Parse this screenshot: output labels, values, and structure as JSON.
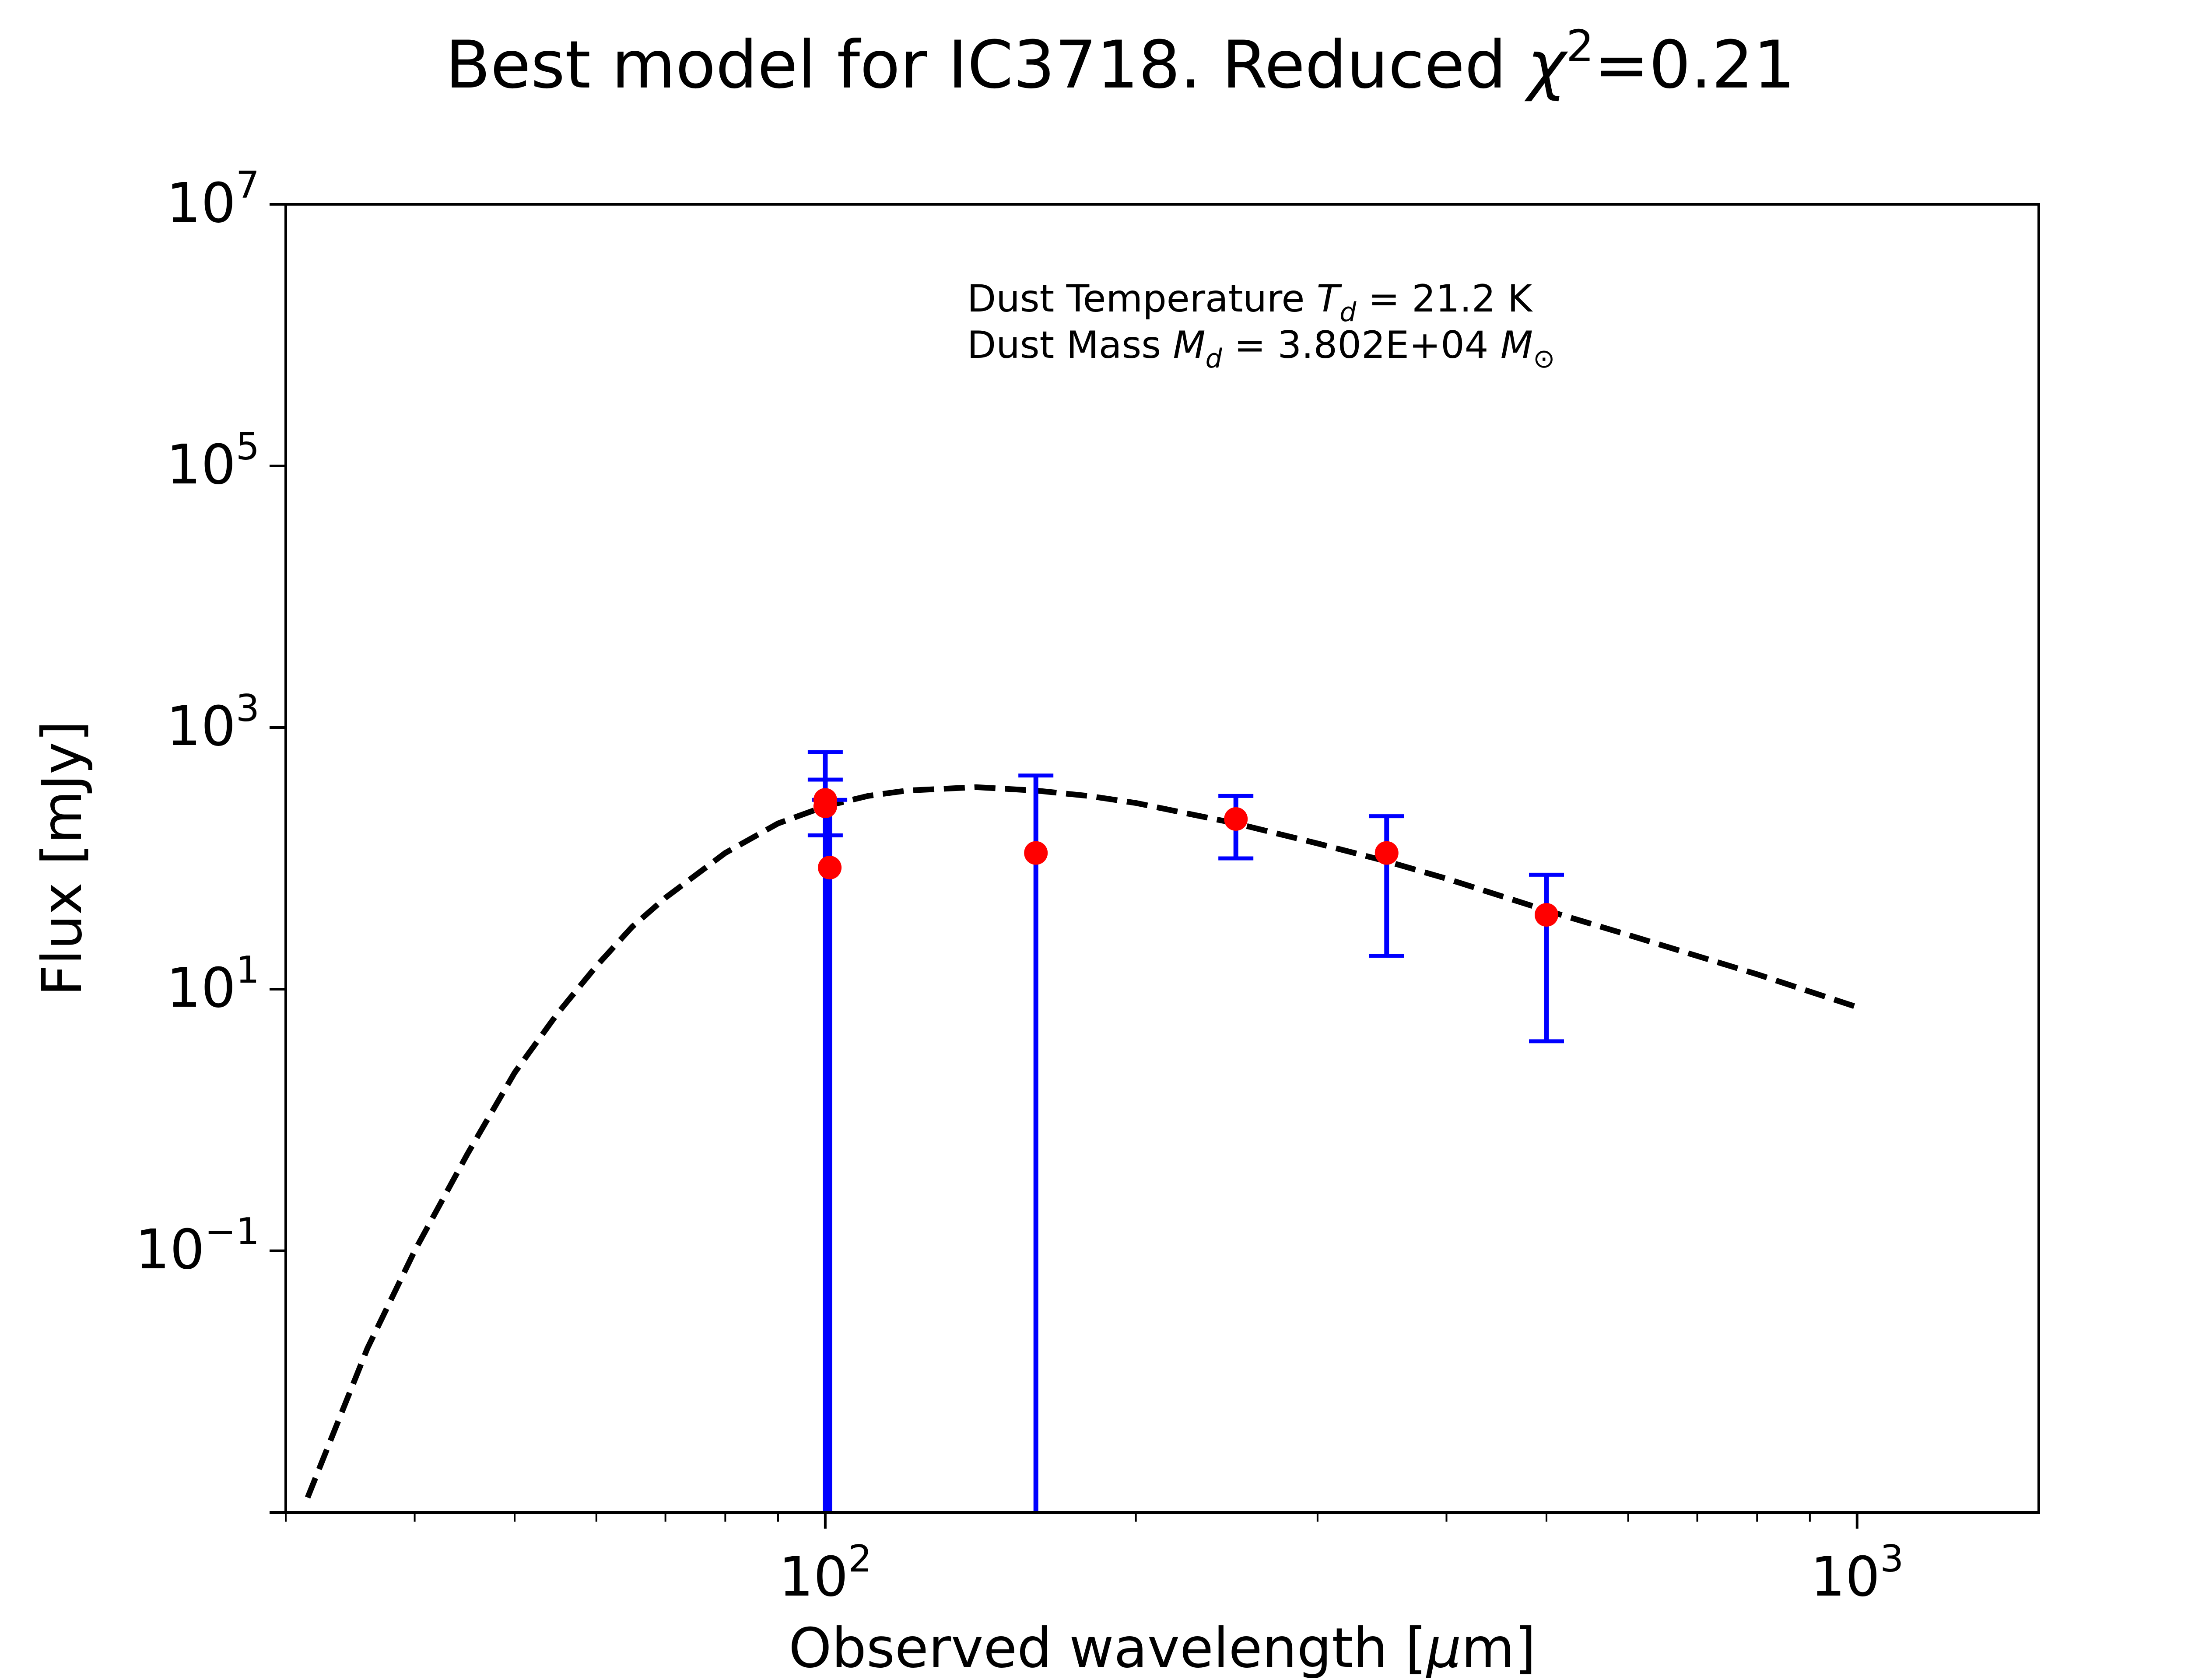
{
  "chart_data": {
    "type": "scatter",
    "title": "Best model for IC3718. Reduced χ²=0.21",
    "title_parts": {
      "main": "Best model for IC3718. Reduced ",
      "chi": "χ",
      "sup": "2",
      "rest": "=0.21"
    },
    "xlabel": "Observed wavelength [μm]",
    "xlabel_parts": {
      "pre": "Observed wavelength [",
      "mu": "μ",
      "post": "m]"
    },
    "ylabel": "Flux [mJy]",
    "xscale": "log",
    "yscale": "log",
    "xlim": [
      30,
      1500
    ],
    "ylim": [
      0.001,
      10000000
    ],
    "xticks": [
      {
        "value": 100,
        "base": "10",
        "exp": "2"
      },
      {
        "value": 1000,
        "base": "10",
        "exp": "3"
      }
    ],
    "yticks": [
      {
        "value": 0.1,
        "base": "10",
        "exp": "−1"
      },
      {
        "value": 10,
        "base": "10",
        "exp": "1"
      },
      {
        "value": 1000,
        "base": "10",
        "exp": "3"
      },
      {
        "value": 100000,
        "base": "10",
        "exp": "5"
      },
      {
        "value": 10000000,
        "base": "10",
        "exp": "7"
      }
    ],
    "annotations": {
      "line1": {
        "pre": "Dust Temperature ",
        "sym": "T",
        "sub": "d",
        "post": " = 21.2 K"
      },
      "line2": {
        "pre": "Dust Mass ",
        "sym": "M",
        "sub": "d",
        "mid": " = 3.802E+04 ",
        "sym2": "M",
        "sub2": "⊙"
      }
    },
    "model": {
      "style": "dashed",
      "color": "#000000",
      "x": [
        31.5,
        36,
        40,
        45,
        50,
        55,
        60,
        65,
        70,
        80,
        90,
        100,
        110,
        120,
        140,
        160,
        180,
        200,
        250,
        300,
        350,
        400,
        500,
        600,
        800,
        1000
      ],
      "y": [
        0.0013,
        0.018,
        0.1,
        0.55,
        2.3,
        6.5,
        15,
        30,
        50,
        110,
        185,
        250,
        300,
        330,
        350,
        330,
        300,
        265,
        185,
        130,
        95,
        70,
        40,
        26,
        13,
        7.3
      ]
    },
    "observations": {
      "marker_color": "#ff0000",
      "errorbar_color": "#0000ff",
      "points": [
        {
          "x": 100,
          "y": 280,
          "yerr_low": 150,
          "yerr_high": 400
        },
        {
          "x": 100,
          "y": 250,
          "yerr_low": 0.001,
          "yerr_high": 650
        },
        {
          "x": 101,
          "y": 85,
          "yerr_low": 0.001,
          "yerr_high": 280
        },
        {
          "x": 160,
          "y": 110,
          "yerr_low": 0.001,
          "yerr_high": 430
        },
        {
          "x": 250,
          "y": 200,
          "yerr_low": 100,
          "yerr_high": 300
        },
        {
          "x": 350,
          "y": 110,
          "yerr_low": 18,
          "yerr_high": 210
        },
        {
          "x": 500,
          "y": 37,
          "yerr_low": 4,
          "yerr_high": 75
        }
      ]
    }
  }
}
